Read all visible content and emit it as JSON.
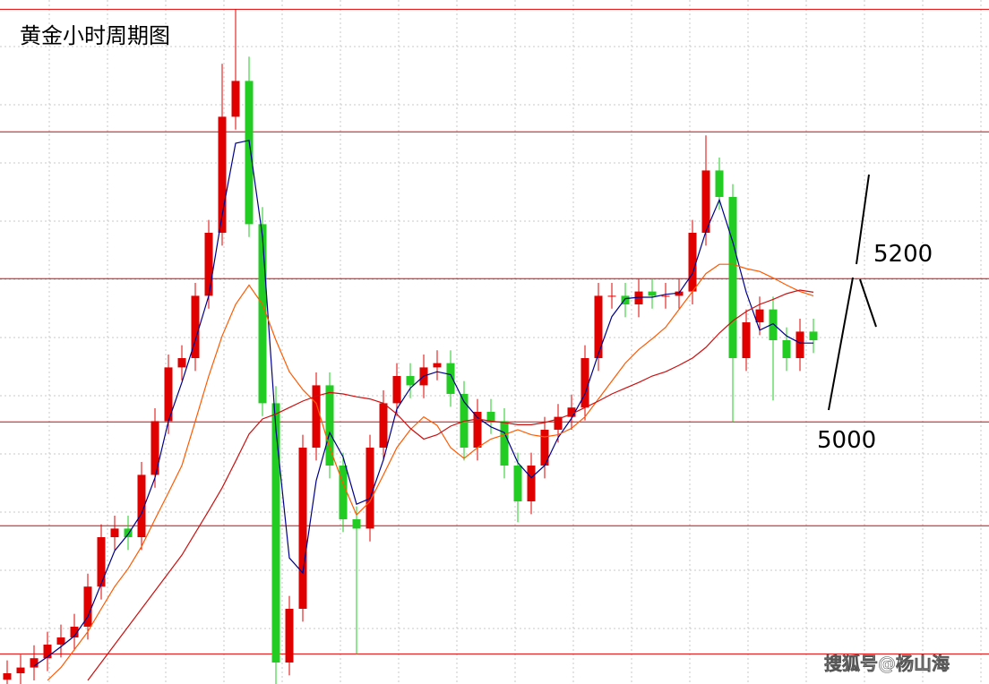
{
  "chart_data": {
    "type": "candlestick",
    "title": "黄金小时周期图",
    "annotations": [
      "5200",
      "5000"
    ],
    "watermark": "搜狐号@杨山海",
    "ylim": [
      4634,
      5589
    ],
    "levels": [
      5576,
      5405,
      5200,
      5000,
      4855,
      4676
    ],
    "level_color": "#e00000",
    "up_color": "#e00000",
    "down_color": "#22cc22",
    "open": [
      4640,
      4649,
      4657,
      4670,
      4689,
      4699,
      4714,
      4770,
      4839,
      4851,
      4839,
      4926,
      5001,
      5076,
      5089,
      5176,
      5264,
      5426,
      5476,
      5276,
      5026,
      4664,
      4739,
      4964,
      5051,
      4939,
      4864,
      4851,
      4964,
      5026,
      5064,
      5051,
      5076,
      5082,
      5039,
      4964,
      5014,
      5001,
      4939,
      4889,
      4939,
      4989,
      5007,
      5020,
      5089,
      5176,
      5176,
      5164,
      5182,
      5176,
      5176,
      5182,
      5264,
      5351,
      5314,
      5089,
      5139,
      5157,
      5114,
      5089,
      5126
    ],
    "high": [
      4667,
      4675,
      4688,
      4707,
      4717,
      4732,
      4788,
      4857,
      4869,
      4869,
      4944,
      5019,
      5094,
      5107,
      5194,
      5282,
      5500,
      5576,
      5510,
      5300,
      5050,
      4757,
      4982,
      5069,
      5069,
      4957,
      4882,
      4982,
      5044,
      5082,
      5082,
      5094,
      5100,
      5100,
      5057,
      5032,
      5032,
      5019,
      4957,
      4957,
      5007,
      5025,
      5038,
      5107,
      5194,
      5194,
      5194,
      5200,
      5200,
      5194,
      5200,
      5282,
      5400,
      5369,
      5332,
      5157,
      5175,
      5175,
      5132,
      5144,
      5144
    ],
    "low": [
      4622,
      4631,
      4639,
      4652,
      4671,
      4681,
      4696,
      4752,
      4821,
      4821,
      4821,
      4908,
      4983,
      5058,
      5071,
      5158,
      5246,
      5408,
      5258,
      5008,
      4615,
      4646,
      4721,
      4946,
      4921,
      4846,
      4676,
      4833,
      4946,
      5008,
      5033,
      5033,
      5058,
      5021,
      4946,
      4946,
      4983,
      4921,
      4860,
      4871,
      4921,
      4971,
      4989,
      5002,
      5071,
      5158,
      5146,
      5146,
      5158,
      5158,
      5158,
      5164,
      5246,
      5296,
      5000,
      5071,
      5121,
      5030,
      5071,
      5071,
      5096
    ],
    "close": [
      4649,
      4657,
      4670,
      4689,
      4699,
      4714,
      4770,
      4839,
      4851,
      4839,
      4926,
      5001,
      5076,
      5089,
      5176,
      5264,
      5426,
      5476,
      5276,
      5026,
      4664,
      4739,
      4964,
      5051,
      4939,
      4864,
      4851,
      4964,
      5026,
      5064,
      5051,
      5076,
      5082,
      5039,
      4964,
      5014,
      5001,
      4939,
      4889,
      4939,
      4989,
      5007,
      5020,
      5089,
      5176,
      5176,
      5164,
      5182,
      5176,
      5176,
      5182,
      5264,
      5351,
      5314,
      5089,
      5139,
      5157,
      5114,
      5089,
      5126,
      5114
    ],
    "lines": [
      {
        "color": "#00008b",
        "values": [
          null,
          null,
          4659,
          4672,
          4686,
          4701,
          4728,
          4774,
          4820,
          4843,
          4872,
          4922,
          5001,
          5055,
          5114,
          5176,
          5289,
          5389,
          5393,
          5259,
          4989,
          4810,
          4789,
          4918,
          4985,
          4951,
          4885,
          4893,
          4947,
          5018,
          5047,
          5064,
          5070,
          5066,
          5028,
          5006,
          4993,
          4985,
          4943,
          4922,
          4939,
          4978,
          5005,
          5039,
          5095,
          5147,
          5172,
          5174,
          5174,
          5178,
          5180,
          5207,
          5266,
          5310,
          5251,
          5181,
          5128,
          5137,
          5120,
          5110,
          5110
        ]
      },
      {
        "color": "#ff5a00",
        "values": [
          null,
          null,
          null,
          4639,
          4657,
          4682,
          4707,
          4739,
          4770,
          4795,
          4826,
          4864,
          4901,
          4939,
          5001,
          5064,
          5120,
          5164,
          5191,
          5164,
          5114,
          5070,
          5045,
          5026,
          4964,
          4914,
          4870,
          4889,
          4926,
          4964,
          4989,
          5007,
          4995,
          4964,
          4949,
          4964,
          4976,
          4982,
          4989,
          4982,
          4979,
          4982,
          4991,
          5007,
          5032,
          5057,
          5082,
          5101,
          5116,
          5132,
          5157,
          5182,
          5207,
          5220,
          5220,
          5214,
          5210,
          5201,
          5191,
          5182,
          5176
        ]
      },
      {
        "color": "#cc1010",
        "values": [
          null,
          null,
          null,
          null,
          null,
          null,
          4639,
          4664,
          4689,
          4714,
          4739,
          4764,
          4789,
          4814,
          4845,
          4876,
          4908,
          4945,
          4983,
          5004,
          5011,
          5020,
          5029,
          5036,
          5041,
          5039,
          5035,
          5032,
          5026,
          5011,
          4991,
          4976,
          4982,
          4994,
          5001,
          5004,
          5001,
          4999,
          4996,
          4996,
          4999,
          5004,
          5011,
          5020,
          5029,
          5039,
          5047,
          5055,
          5064,
          5070,
          5079,
          5089,
          5104,
          5124,
          5141,
          5154,
          5164,
          5171,
          5179,
          5184,
          5181
        ]
      }
    ]
  }
}
